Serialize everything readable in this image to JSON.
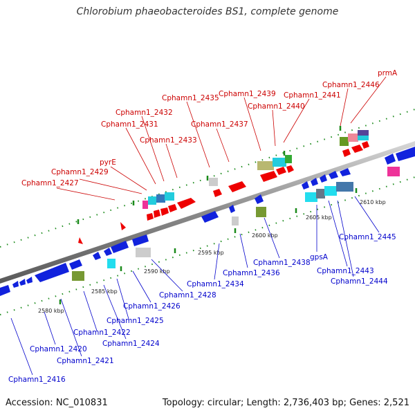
{
  "title": "Chlorobium phaeobacteroides BS1, complete genome",
  "footer": {
    "accession": "Accession: NC_010831",
    "summary": "Topology: circular; Length: 2,736,403 bp; Genes: 2,521"
  },
  "colors": {
    "top_label": "#cc0000",
    "bottom_label": "#0000cc",
    "backbone": "#888888",
    "tick": "#1a8a1a"
  },
  "axis": {
    "ticks": [
      "2580 kbp",
      "2585 kbp",
      "2590 kbp",
      "2595 kbp",
      "2600 kbp",
      "2605 kbp",
      "2610 kbp"
    ]
  },
  "labels": {
    "top": [
      "Cphamn1_2427",
      "Cphamn1_2429",
      "pyrE",
      "Cphamn1_2431",
      "Cphamn1_2432",
      "Cphamn1_2433",
      "Cphamn1_2435",
      "Cphamn1_2437",
      "Cphamn1_2439",
      "Cphamn1_2440",
      "Cphamn1_2441",
      "Cphamn1_2446",
      "prmA"
    ],
    "bottom": [
      "Cphamn1_2416",
      "Cphamn1_2420",
      "Cphamn1_2421",
      "Cphamn1_2422",
      "Cphamn1_2424",
      "Cphamn1_2425",
      "Cphamn1_2426",
      "Cphamn1_2428",
      "Cphamn1_2434",
      "Cphamn1_2436",
      "Cphamn1_2438",
      "gpsA",
      "Cphamn1_2443",
      "Cphamn1_2444",
      "Cphamn1_2445"
    ]
  }
}
